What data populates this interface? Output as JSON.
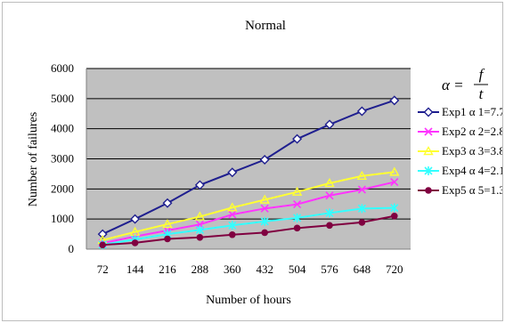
{
  "chart_data": {
    "type": "line",
    "title": "Normal",
    "xlabel": "Number of hours",
    "ylabel": "Number of failures",
    "categories": [
      "72",
      "144",
      "216",
      "288",
      "360",
      "432",
      "504",
      "576",
      "648",
      "720"
    ],
    "ylim": [
      0,
      6000
    ],
    "yticks": [
      "0",
      "1000",
      "2000",
      "3000",
      "4000",
      "5000",
      "6000"
    ],
    "grid": true,
    "legend_position": "right",
    "formula": {
      "lhs": "α =",
      "numerator": "f",
      "denominator": "t"
    },
    "series": [
      {
        "name": "Exp1  α 1=7.7",
        "color": "#1f1f8f",
        "marker": "diamond-open",
        "values": [
          500,
          1000,
          1530,
          2130,
          2550,
          2970,
          3660,
          4140,
          4580,
          4940
        ]
      },
      {
        "name": "Exp2  α 2=2.8",
        "color": "#ff33ff",
        "marker": "x",
        "values": [
          200,
          420,
          620,
          820,
          1150,
          1350,
          1490,
          1780,
          1980,
          2230
        ]
      },
      {
        "name": "Exp3  α 3=3.8",
        "color": "#ffff33",
        "marker": "triangle-open",
        "values": [
          300,
          570,
          830,
          1080,
          1380,
          1640,
          1900,
          2190,
          2430,
          2560
        ]
      },
      {
        "name": "Exp4  α 4=2.1",
        "color": "#33ffff",
        "marker": "asterisk",
        "values": [
          150,
          320,
          500,
          640,
          790,
          920,
          1040,
          1200,
          1350,
          1370
        ]
      },
      {
        "name": "Exp5  α 5=1.3",
        "color": "#800040",
        "marker": "circle",
        "values": [
          140,
          210,
          340,
          390,
          480,
          550,
          700,
          790,
          890,
          1100
        ]
      }
    ]
  }
}
